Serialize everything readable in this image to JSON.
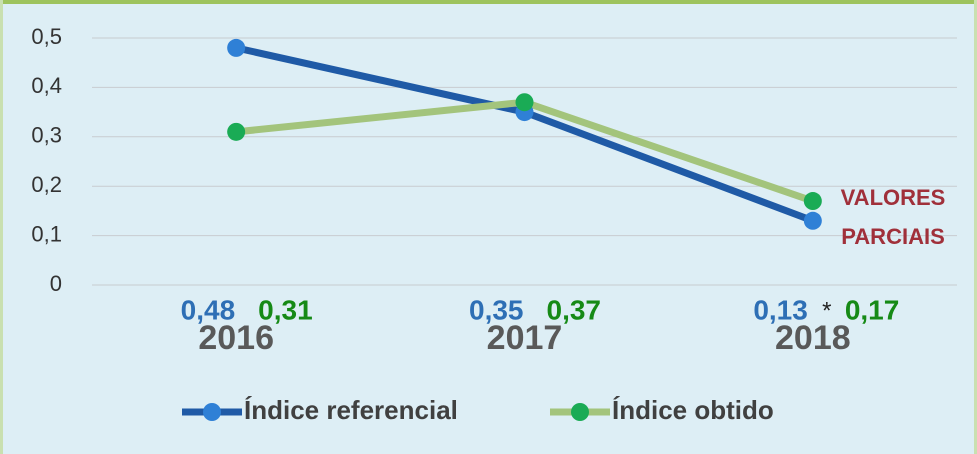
{
  "chart_data": {
    "type": "line",
    "categories": [
      "2016",
      "2017",
      "2018"
    ],
    "series": [
      {
        "name": "Índice referencial",
        "color": "#1f5aa6",
        "marker_color": "#2f80d6",
        "values": [
          0.48,
          0.35,
          0.13
        ],
        "value_labels": [
          "0,48",
          "0,35",
          "0,13"
        ],
        "label_color": "#2e6fb5"
      },
      {
        "name": "Índice obtido",
        "color": "#a3c47c",
        "marker_color": "#1aab55",
        "values": [
          0.31,
          0.37,
          0.17
        ],
        "value_labels": [
          "0,31",
          "0,37",
          "0,17"
        ],
        "label_color": "#168a16"
      }
    ],
    "footnote_mark": "*",
    "annotation": [
      "VALORES",
      "PARCIAIS"
    ],
    "ylim": [
      0,
      0.5
    ],
    "yticks": [
      {
        "value": 0,
        "label": "0"
      },
      {
        "value": 0.1,
        "label": "0,1"
      },
      {
        "value": 0.2,
        "label": "0,2"
      },
      {
        "value": 0.3,
        "label": "0,3"
      },
      {
        "value": 0.4,
        "label": "0,4"
      },
      {
        "value": 0.5,
        "label": "0,5"
      }
    ],
    "grid": true,
    "legend": "bottom"
  }
}
